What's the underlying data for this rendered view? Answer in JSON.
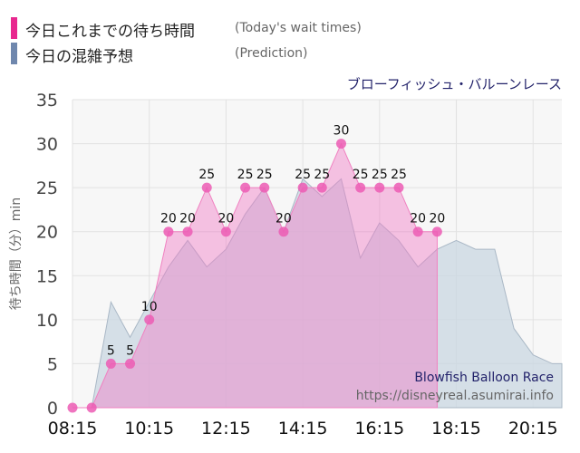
{
  "legend": {
    "actual_label": "今日これまでの待ち時間",
    "actual_note": "(Today's wait times)",
    "predicted_label": "今日の混雑予想",
    "predicted_note": "(Prediction)"
  },
  "attraction_name_jp": "ブローフィッシュ・バルーンレース",
  "watermark": {
    "name_en": "Blowfish Balloon Race",
    "url": "https://disneyreal.asumirai.info"
  },
  "colors": {
    "actual": "#e8288f",
    "predicted": "#6f87ad"
  },
  "chart_data": {
    "type": "area",
    "ylabel": "待ち時間（分）min",
    "ylim": [
      0,
      35
    ],
    "yticks": [
      0,
      5,
      10,
      15,
      20,
      25,
      30,
      35
    ],
    "xlim": [
      "08:15",
      "21:00"
    ],
    "xtick_labels": [
      "08:15",
      "10:15",
      "12:15",
      "14:15",
      "16:15",
      "18:15",
      "20:15"
    ],
    "grid": true,
    "series": [
      {
        "name": "今日の混雑予想",
        "x": [
          "08:15",
          "08:45",
          "09:15",
          "09:45",
          "10:15",
          "10:45",
          "11:15",
          "11:45",
          "12:15",
          "12:45",
          "13:15",
          "13:45",
          "14:15",
          "14:45",
          "15:15",
          "15:45",
          "16:15",
          "16:45",
          "17:15",
          "17:45",
          "18:15",
          "18:45",
          "19:15",
          "19:45",
          "20:15",
          "20:45",
          "21:00"
        ],
        "values": [
          0,
          0,
          12,
          8,
          12,
          16,
          19,
          16,
          18,
          22,
          25,
          20,
          26,
          24,
          26,
          17,
          21,
          19,
          16,
          18,
          19,
          18,
          18,
          9,
          6,
          5,
          5
        ]
      },
      {
        "name": "今日これまでの待ち時間",
        "x": [
          "08:15",
          "08:45",
          "09:15",
          "09:45",
          "10:15",
          "10:45",
          "11:15",
          "11:45",
          "12:15",
          "12:45",
          "13:15",
          "13:45",
          "14:15",
          "14:45",
          "15:15",
          "15:45",
          "16:15",
          "16:45",
          "17:15",
          "17:45"
        ],
        "values": [
          0,
          0,
          5,
          5,
          10,
          20,
          20,
          25,
          20,
          25,
          25,
          20,
          25,
          25,
          30,
          25,
          25,
          25,
          20,
          20
        ]
      }
    ]
  }
}
